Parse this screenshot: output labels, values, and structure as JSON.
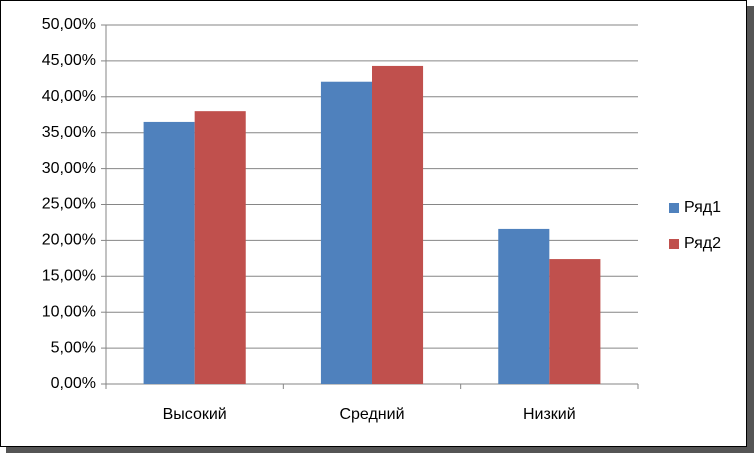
{
  "chart_data": {
    "type": "bar",
    "categories": [
      "Высокий",
      "Средний",
      "Низкий"
    ],
    "series": [
      {
        "name": "Ряд1",
        "color": "#4f81bd",
        "values": [
          36.5,
          42.1,
          21.6
        ]
      },
      {
        "name": "Ряд2",
        "color": "#c0504d",
        "values": [
          38.0,
          44.3,
          17.4
        ]
      }
    ],
    "ylim": [
      0,
      50
    ],
    "yticks": [
      {
        "value": 0,
        "label": "0,00%"
      },
      {
        "value": 5,
        "label": "5,00%"
      },
      {
        "value": 10,
        "label": "10,00%"
      },
      {
        "value": 15,
        "label": "15,00%"
      },
      {
        "value": 20,
        "label": "20,00%"
      },
      {
        "value": 25,
        "label": "25,00%"
      },
      {
        "value": 30,
        "label": "30,00%"
      },
      {
        "value": 35,
        "label": "35,00%"
      },
      {
        "value": 40,
        "label": "40,00%"
      },
      {
        "value": 45,
        "label": "45,00%"
      },
      {
        "value": 50,
        "label": "50,00%"
      }
    ],
    "grid": true,
    "legend": "right"
  }
}
